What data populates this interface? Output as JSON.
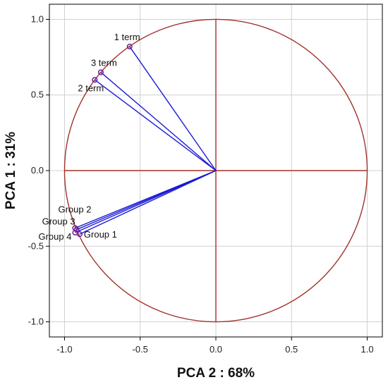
{
  "chart_data": {
    "type": "scatter",
    "subtype": "pca-correlation-circle",
    "xlabel": "PCA 2 : 68%",
    "ylabel": "PCA 1 : 31%",
    "xlim": [
      -1.1,
      1.1
    ],
    "ylim": [
      -1.1,
      1.1
    ],
    "xticks": [
      -1.0,
      -0.5,
      0.0,
      0.5,
      1.0
    ],
    "yticks": [
      -1.0,
      -0.5,
      0.0,
      0.5,
      1.0
    ],
    "xtick_labels": [
      "-1.0",
      "-0.5",
      "0.0",
      "0.5",
      "1.0"
    ],
    "ytick_labels": [
      "-1.0",
      "-0.5",
      "0.0",
      "0.5",
      "1.0"
    ],
    "grid": true,
    "circle_radius": 1.0,
    "points": [
      {
        "label": "1 term",
        "x": -0.57,
        "y": 0.82
      },
      {
        "label": "3 term",
        "x": -0.76,
        "y": 0.65
      },
      {
        "label": "2 term",
        "x": -0.8,
        "y": 0.6
      },
      {
        "label": "Group 2",
        "x": -0.93,
        "y": -0.38
      },
      {
        "label": "Group 3",
        "x": -0.92,
        "y": -0.39
      },
      {
        "label": "Group 4",
        "x": -0.93,
        "y": -0.41
      },
      {
        "label": "Group 1",
        "x": -0.9,
        "y": -0.42
      }
    ],
    "colors": {
      "vector": "#1a1ad6",
      "circle": "#a0322a",
      "marker": "#6a1fa0",
      "grid": "#d0d0d0"
    }
  }
}
